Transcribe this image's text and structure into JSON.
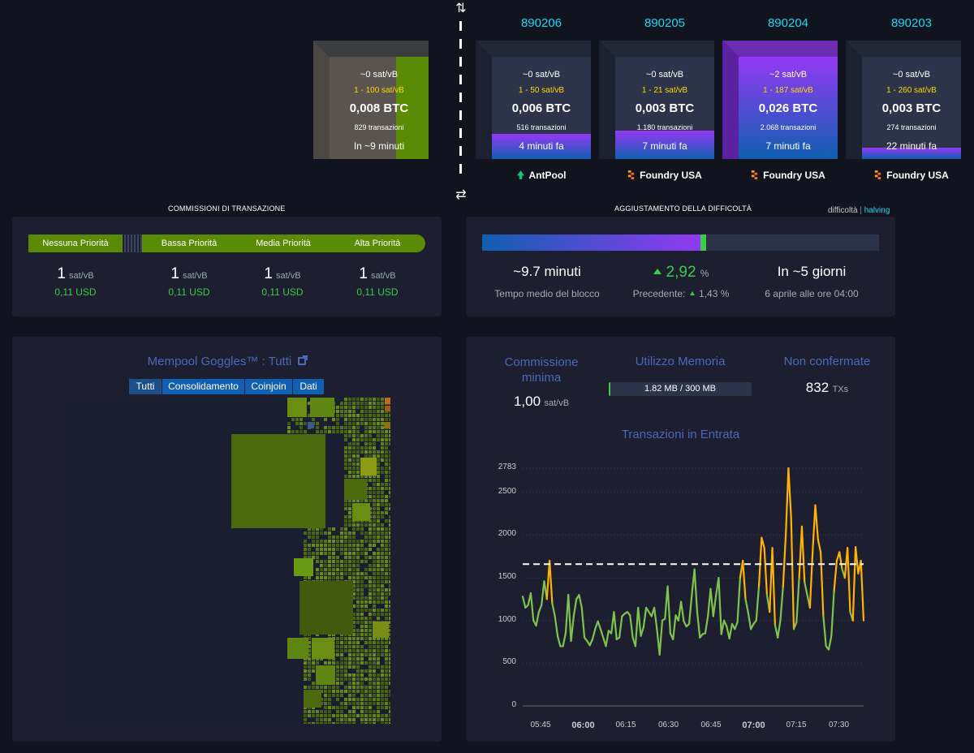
{
  "projected_block": {
    "fee": "~0 sat/vB",
    "fee_range": "1 - 100 sat/vB",
    "size_btc": "0,008 BTC",
    "tx_count": "829 transazioni",
    "eta": "In ~9 minuti",
    "colors": {
      "top": "#3c3d3e",
      "side": "#4a4744",
      "face": "#5a5450",
      "accent": "#5b8a04"
    }
  },
  "toggle_up_icon": "⇅",
  "toggle_down_icon": "⇄",
  "blocks": [
    {
      "height": "890206",
      "fee": "~0 sat/vB",
      "fee_range": "1 - 50 sat/vB",
      "size_btc": "0,006 BTC",
      "tx_count": "516 transazioni",
      "time": "4 minuti fa",
      "pool": "AntPool",
      "pool_icon": "antpool-icon",
      "fill_pct": 25,
      "purple": false
    },
    {
      "height": "890205",
      "fee": "~0 sat/vB",
      "fee_range": "1 - 21 sat/vB",
      "size_btc": "0,003 BTC",
      "tx_count": "1.180 transazioni",
      "time": "7 minuti fa",
      "pool": "Foundry USA",
      "pool_icon": "foundry-icon",
      "fill_pct": 28,
      "purple": false
    },
    {
      "height": "890204",
      "fee": "~2 sat/vB",
      "fee_range": "1 - 187 sat/vB",
      "size_btc": "0,026 BTC",
      "tx_count": "2.068 transazioni",
      "time": "7 minuti fa",
      "pool": "Foundry USA",
      "pool_icon": "foundry-icon",
      "fill_pct": 100,
      "purple": true
    },
    {
      "height": "890203",
      "fee": "~0 sat/vB",
      "fee_range": "1 - 260 sat/vB",
      "size_btc": "0,003 BTC",
      "tx_count": "274 transazioni",
      "time": "22 minuti fa",
      "pool": "Foundry USA",
      "pool_icon": "foundry-icon",
      "fill_pct": 11,
      "purple": false
    }
  ],
  "fees": {
    "title": "COMMISSIONI DI TRANSAZIONE",
    "priorities": [
      {
        "label": "Nessuna Priorità",
        "value": "1",
        "unit": "sat/vB",
        "usd": "0,11 USD"
      },
      {
        "label": "Bassa Priorità",
        "value": "1",
        "unit": "sat/vB",
        "usd": "0,11 USD"
      },
      {
        "label": "Media Priorità",
        "value": "1",
        "unit": "sat/vB",
        "usd": "0,11 USD"
      },
      {
        "label": "Alta Priorità",
        "value": "1",
        "unit": "sat/vB",
        "usd": "0,11 USD"
      }
    ]
  },
  "difficulty": {
    "title": "AGGIUSTAMENTO DELLA DIFFICOLTÀ",
    "link_difficulty": "difficoltà",
    "separator": "|",
    "link_halving": "halving",
    "progress_pct": 55.5,
    "avg_block_time": "~9.7 minuti",
    "avg_block_label": "Tempo medio del blocco",
    "change_value": "2,92",
    "change_unit": "%",
    "previous_label": "Precedente:",
    "previous_value": "1,43",
    "previous_unit": "%",
    "eta": "In ~5 giorni",
    "eta_date": "6 aprile alle ore 04:00"
  },
  "goggles": {
    "title": "Mempool Goggles™ : Tutti",
    "link_icon": "external-link-icon",
    "tabs": [
      "Tutti",
      "Consolidamento",
      "Coinjoin",
      "Dati"
    ],
    "active_tab": "Tutti"
  },
  "mempool_stats": {
    "min_fee_label": "Commissione minima",
    "min_fee_value": "1,00",
    "min_fee_unit": "sat/vB",
    "memory_label": "Utilizzo Memoria",
    "memory_value": "1.82 MB / 300 MB",
    "memory_pct": 0.6,
    "unconfirmed_label": "Non confermate",
    "unconfirmed_value": "832",
    "unconfirmed_unit": "TXs"
  },
  "chart_data": {
    "type": "line",
    "title": "Transazioni in Entrata",
    "y_ticks": [
      "2783",
      "2500",
      "2000",
      "1500",
      "1000",
      "500",
      "0"
    ],
    "ylim": [
      0,
      2783
    ],
    "x_ticks": [
      {
        "label": "05:45",
        "bold": false
      },
      {
        "label": "06:00",
        "bold": true
      },
      {
        "label": "06:15",
        "bold": false
      },
      {
        "label": "06:30",
        "bold": false
      },
      {
        "label": "06:45",
        "bold": false
      },
      {
        "label": "07:00",
        "bold": true
      },
      {
        "label": "07:15",
        "bold": false
      },
      {
        "label": "07:30",
        "bold": false
      }
    ],
    "reference_line": 1660,
    "threshold": 1660,
    "colors": {
      "low": "#7fc44a",
      "high": "#ffb300"
    },
    "values": [
      1280,
      1150,
      1180,
      1320,
      1000,
      940,
      1100,
      1180,
      1460,
      1250,
      1700,
      1200,
      1050,
      820,
      700,
      700,
      850,
      1300,
      760,
      1050,
      1250,
      1300,
      1150,
      800,
      760,
      710,
      780,
      900,
      990,
      900,
      800,
      700,
      880,
      850,
      1100,
      780,
      800,
      1050,
      1080,
      1100,
      1060,
      800,
      700,
      1150,
      820,
      920,
      1150,
      1100,
      1050,
      1150,
      900,
      600,
      1000,
      1020,
      1400,
      850,
      780,
      1060,
      1000,
      1220,
      990,
      930,
      960,
      1300,
      1600,
      1100,
      800,
      840,
      850,
      1050,
      1370,
      1050,
      1290,
      1500,
      840,
      1000,
      930,
      790,
      960,
      900,
      980,
      1500,
      1700,
      1250,
      1090,
      900,
      960,
      1000,
      1400,
      1970,
      1850,
      1300,
      1100,
      1850,
      950,
      800,
      1000,
      1400,
      2000,
      2783,
      2200,
      900,
      980,
      1500,
      2100,
      1450,
      1300,
      1150,
      1800,
      2350,
      1950,
      1800,
      1050,
      700,
      660,
      820,
      1350,
      1700,
      1800,
      1600,
      1500,
      1850,
      1100,
      1000,
      1860,
      1550,
      1700,
      1000
    ]
  }
}
